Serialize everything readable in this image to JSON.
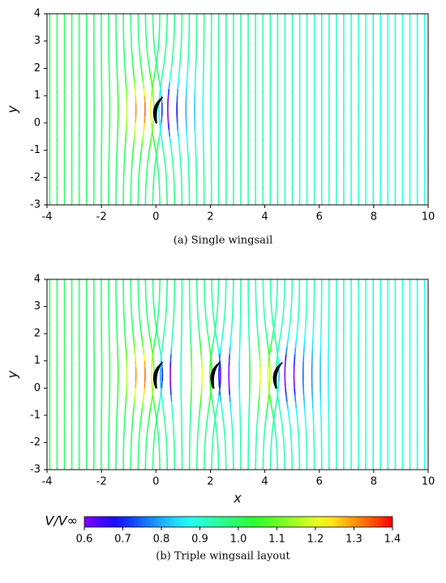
{
  "chart_data": [
    {
      "type": "streamline",
      "ylabel": "y",
      "caption": "(a)  Single wingsail",
      "xlim": [
        -4,
        10
      ],
      "ylim": [
        -3,
        4
      ],
      "xticks": [
        -4,
        -2,
        0,
        2,
        4,
        6,
        8,
        10
      ],
      "yticks": [
        -3,
        -2,
        -1,
        0,
        1,
        2,
        3,
        4
      ]
    },
    {
      "type": "streamline",
      "xlabel": "x",
      "ylabel": "y",
      "caption": "(b)  Triple wingsail layout",
      "xlim": [
        -4,
        10
      ],
      "ylim": [
        -3,
        4
      ],
      "xticks": [
        -4,
        -2,
        0,
        2,
        4,
        6,
        8,
        10
      ],
      "yticks": [
        -3,
        -2,
        -1,
        0,
        1,
        2,
        3,
        4
      ],
      "colorbar": {
        "label": "V/V∞",
        "lim": [
          0.6,
          1.4
        ],
        "ticks": [
          0.6,
          0.7,
          0.8,
          0.9,
          {
            "value": 1,
            "label": "1.0"
          },
          1.1,
          1.2,
          1.3,
          1.4
        ]
      }
    }
  ]
}
